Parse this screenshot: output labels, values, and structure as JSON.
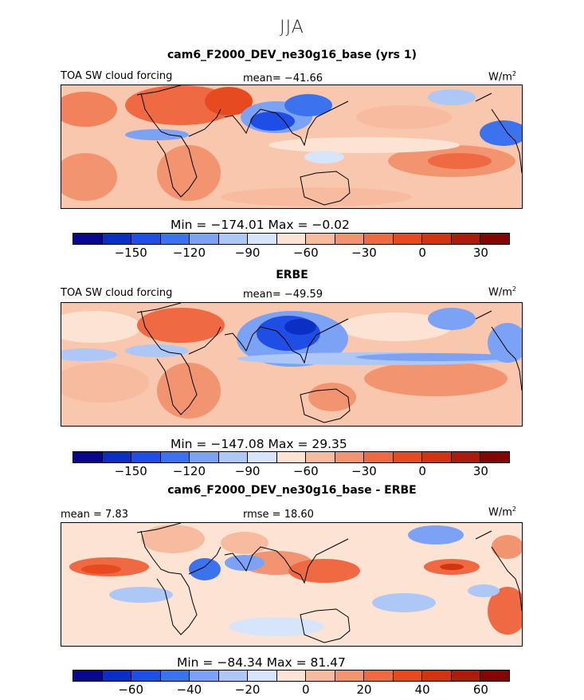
{
  "season": "JJA",
  "colorbar_colors": [
    "#08088e",
    "#0b2fc4",
    "#1f4ee6",
    "#3d72ee",
    "#7ba2f5",
    "#adc7f7",
    "#d7e5fa",
    "#fce3d4",
    "#f7bba0",
    "#f39471",
    "#ef6a43",
    "#e84a1f",
    "#d33410",
    "#ad1b0a",
    "#840603"
  ],
  "panels": [
    {
      "title": "cam6_F2000_DEV_ne30g16_base (yrs 1)",
      "left_label": "TOA SW cloud forcing",
      "center_label": "mean= −41.66",
      "units": "W/m",
      "units_sup": "2",
      "stats": "Min = −174.01 Max =  −0.02",
      "ticks": [
        "−150",
        "−120",
        "−90",
        "−60",
        "−30",
        "0",
        "30"
      ]
    },
    {
      "title": "ERBE",
      "left_label": "TOA SW cloud forcing",
      "center_label": "mean= −49.59",
      "units": "W/m",
      "units_sup": "2",
      "stats": "Min = −147.08 Max =  29.35",
      "ticks": [
        "−150",
        "−120",
        "−90",
        "−60",
        "−30",
        "0",
        "30"
      ]
    },
    {
      "title": "cam6_F2000_DEV_ne30g16_base - ERBE",
      "left_label": "mean =  7.83",
      "center_label": "rmse =  18.60",
      "units": "W/m",
      "units_sup": "2",
      "stats": "Min = −84.34 Max =  81.47",
      "ticks": [
        "−60",
        "−40",
        "−20",
        "0",
        "20",
        "40",
        "60"
      ]
    }
  ]
}
